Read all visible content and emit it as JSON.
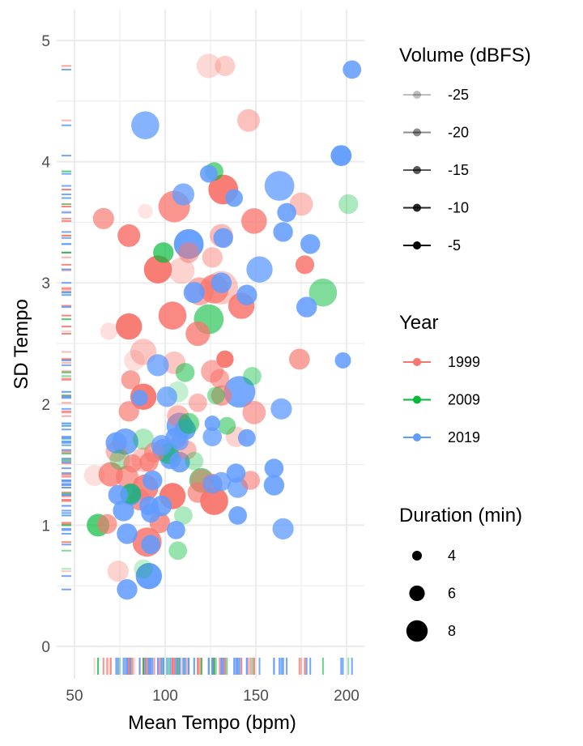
{
  "chart_data": {
    "type": "scatter",
    "xlabel": "Mean Tempo (bpm)",
    "ylabel": "SD Tempo",
    "xlim": [
      45,
      210
    ],
    "ylim": [
      -0.1,
      5.25
    ],
    "x_ticks": [
      50,
      100,
      150,
      200
    ],
    "x_tick_labels": [
      "50",
      "100",
      "150",
      "200"
    ],
    "y_ticks": [
      0,
      1,
      2,
      3,
      4,
      5
    ],
    "y_tick_labels": [
      "0",
      "1",
      "2",
      "3",
      "4",
      "5"
    ],
    "grid": true,
    "rug": true,
    "legend_position": "right",
    "colors": {
      "1999": "#F8766D",
      "2009": "#00BA38",
      "2019": "#619CFF"
    },
    "legends": {
      "volume": {
        "title": "Volume (dBFS)",
        "items": [
          {
            "label": "-25",
            "alpha": 0.25
          },
          {
            "label": "-20",
            "alpha": 0.45
          },
          {
            "label": "-15",
            "alpha": 0.65
          },
          {
            "label": "-10",
            "alpha": 0.85
          },
          {
            "label": "-5",
            "alpha": 1.0
          }
        ]
      },
      "year": {
        "title": "Year",
        "items": [
          {
            "label": "1999",
            "color": "#F8766D"
          },
          {
            "label": "2009",
            "color": "#00BA38"
          },
          {
            "label": "2019",
            "color": "#619CFF"
          }
        ]
      },
      "duration": {
        "title": "Duration (min)",
        "items": [
          {
            "label": "4",
            "duration": 4
          },
          {
            "label": "6",
            "duration": 6
          },
          {
            "label": "8",
            "duration": 8
          }
        ]
      }
    },
    "series": [
      {
        "name": "1999",
        "color": "#F8766D",
        "points": [
          {
            "x": 124,
            "y": 4.79,
            "d": 5.5,
            "v": -23
          },
          {
            "x": 133,
            "y": 4.79,
            "d": 4.3,
            "v": -21
          },
          {
            "x": 146,
            "y": 4.34,
            "d": 5.0,
            "v": -19
          },
          {
            "x": 89,
            "y": 3.59,
            "d": 2.8,
            "v": -25
          },
          {
            "x": 66,
            "y": 3.53,
            "d": 4.6,
            "v": -14
          },
          {
            "x": 105,
            "y": 3.63,
            "d": 7.5,
            "v": -12
          },
          {
            "x": 132,
            "y": 3.77,
            "d": 7.0,
            "v": -8
          },
          {
            "x": 175,
            "y": 3.65,
            "d": 5.2,
            "v": -19
          },
          {
            "x": 149,
            "y": 3.51,
            "d": 5.8,
            "v": -12
          },
          {
            "x": 80,
            "y": 3.39,
            "d": 5.0,
            "v": -10
          },
          {
            "x": 131,
            "y": 3.39,
            "d": 5.2,
            "v": -18
          },
          {
            "x": 113,
            "y": 3.25,
            "d": 4.5,
            "v": -17
          },
          {
            "x": 126,
            "y": 3.21,
            "d": 4.4,
            "v": -19
          },
          {
            "x": 177,
            "y": 3.15,
            "d": 3.9,
            "v": -10
          },
          {
            "x": 96,
            "y": 3.11,
            "d": 6.5,
            "v": -8
          },
          {
            "x": 109,
            "y": 3.1,
            "d": 6.0,
            "v": -22
          },
          {
            "x": 131,
            "y": 2.96,
            "d": 8.0,
            "v": -20
          },
          {
            "x": 127,
            "y": 2.95,
            "d": 6.8,
            "v": -12
          },
          {
            "x": 119,
            "y": 2.93,
            "d": 6.5,
            "v": -16
          },
          {
            "x": 142,
            "y": 2.81,
            "d": 6.0,
            "v": -10
          },
          {
            "x": 104,
            "y": 2.73,
            "d": 6.5,
            "v": -10
          },
          {
            "x": 118,
            "y": 2.58,
            "d": 5.5,
            "v": -12
          },
          {
            "x": 80,
            "y": 2.64,
            "d": 6.0,
            "v": -8
          },
          {
            "x": 69,
            "y": 2.6,
            "d": 3.5,
            "v": -24
          },
          {
            "x": 88,
            "y": 2.43,
            "d": 6.0,
            "v": -20
          },
          {
            "x": 83,
            "y": 2.36,
            "d": 4.5,
            "v": -24
          },
          {
            "x": 105,
            "y": 2.34,
            "d": 5.0,
            "v": -20
          },
          {
            "x": 133,
            "y": 2.37,
            "d": 3.5,
            "v": -8
          },
          {
            "x": 174,
            "y": 2.37,
            "d": 4.5,
            "v": -14
          },
          {
            "x": 126,
            "y": 2.27,
            "d": 5.0,
            "v": -16
          },
          {
            "x": 130,
            "y": 2.21,
            "d": 4.0,
            "v": -16
          },
          {
            "x": 81,
            "y": 2.2,
            "d": 4.0,
            "v": -14
          },
          {
            "x": 88,
            "y": 2.06,
            "d": 6.0,
            "v": -8
          },
          {
            "x": 118,
            "y": 2.01,
            "d": 3.8,
            "v": -18
          },
          {
            "x": 131,
            "y": 2.07,
            "d": 4.4,
            "v": -15
          },
          {
            "x": 149,
            "y": 1.93,
            "d": 5.2,
            "v": -16
          },
          {
            "x": 80,
            "y": 1.94,
            "d": 4.4,
            "v": -14
          },
          {
            "x": 107,
            "y": 1.9,
            "d": 4.8,
            "v": -18
          },
          {
            "x": 139,
            "y": 1.73,
            "d": 4.4,
            "v": -22
          },
          {
            "x": 73,
            "y": 1.61,
            "d": 4.6,
            "v": -18
          },
          {
            "x": 94,
            "y": 1.6,
            "d": 4.4,
            "v": -16
          },
          {
            "x": 88,
            "y": 1.54,
            "d": 5.5,
            "v": -20
          },
          {
            "x": 82,
            "y": 1.51,
            "d": 3.8,
            "v": -14
          },
          {
            "x": 91,
            "y": 1.52,
            "d": 4.0,
            "v": -13
          },
          {
            "x": 61,
            "y": 1.41,
            "d": 4.5,
            "v": -24
          },
          {
            "x": 70,
            "y": 1.42,
            "d": 5.5,
            "v": -12
          },
          {
            "x": 79,
            "y": 1.4,
            "d": 5.0,
            "v": -14
          },
          {
            "x": 120,
            "y": 1.37,
            "d": 5.0,
            "v": -18
          },
          {
            "x": 126,
            "y": 1.34,
            "d": 4.4,
            "v": -14
          },
          {
            "x": 147,
            "y": 1.37,
            "d": 4.0,
            "v": -16
          },
          {
            "x": 89,
            "y": 1.31,
            "d": 6.0,
            "v": -10
          },
          {
            "x": 86,
            "y": 1.21,
            "d": 4.6,
            "v": -12
          },
          {
            "x": 104,
            "y": 1.24,
            "d": 6.0,
            "v": -8
          },
          {
            "x": 127,
            "y": 1.2,
            "d": 6.5,
            "v": -8
          },
          {
            "x": 68,
            "y": 1.01,
            "d": 4.2,
            "v": -14
          },
          {
            "x": 97,
            "y": 1.02,
            "d": 4.4,
            "v": -12
          },
          {
            "x": 90,
            "y": 0.86,
            "d": 6.8,
            "v": -10
          },
          {
            "x": 74,
            "y": 0.62,
            "d": 4.6,
            "v": -22
          },
          {
            "x": 118,
            "y": 1.27,
            "d": 4.4,
            "v": -14
          },
          {
            "x": 112,
            "y": 1.62,
            "d": 4.0,
            "v": -18
          }
        ]
      },
      {
        "name": "2009",
        "color": "#00BA38",
        "points": [
          {
            "x": 201,
            "y": 3.65,
            "d": 4.2,
            "v": -22
          },
          {
            "x": 187,
            "y": 2.92,
            "d": 6.5,
            "v": -18
          },
          {
            "x": 124,
            "y": 2.7,
            "d": 7.0,
            "v": -16
          },
          {
            "x": 148,
            "y": 2.23,
            "d": 3.8,
            "v": -20
          },
          {
            "x": 111,
            "y": 2.26,
            "d": 4.0,
            "v": -18
          },
          {
            "x": 107,
            "y": 2.1,
            "d": 4.5,
            "v": -24
          },
          {
            "x": 128,
            "y": 2.07,
            "d": 3.6,
            "v": -20
          },
          {
            "x": 113,
            "y": 1.84,
            "d": 4.5,
            "v": -18
          },
          {
            "x": 88,
            "y": 1.71,
            "d": 4.6,
            "v": -22
          },
          {
            "x": 116,
            "y": 1.53,
            "d": 3.8,
            "v": -22
          },
          {
            "x": 102,
            "y": 1.59,
            "d": 4.5,
            "v": -18
          },
          {
            "x": 75,
            "y": 1.54,
            "d": 4.4,
            "v": -22
          },
          {
            "x": 120,
            "y": 1.37,
            "d": 5.5,
            "v": -16
          },
          {
            "x": 63,
            "y": 1.0,
            "d": 5.0,
            "v": -14
          },
          {
            "x": 81,
            "y": 1.26,
            "d": 4.4,
            "v": -16
          },
          {
            "x": 88,
            "y": 0.64,
            "d": 4.0,
            "v": -24
          },
          {
            "x": 107,
            "y": 0.79,
            "d": 3.8,
            "v": -20
          },
          {
            "x": 110,
            "y": 1.08,
            "d": 3.8,
            "v": -22
          },
          {
            "x": 99,
            "y": 3.25,
            "d": 4.4,
            "v": -14
          },
          {
            "x": 127,
            "y": 3.92,
            "d": 3.8,
            "v": -16
          },
          {
            "x": 134,
            "y": 1.82,
            "d": 3.6,
            "v": -18
          }
        ]
      },
      {
        "name": "2019",
        "color": "#619CFF",
        "points": [
          {
            "x": 203,
            "y": 4.76,
            "d": 3.8,
            "v": -10
          },
          {
            "x": 89,
            "y": 4.3,
            "d": 6.5,
            "v": -12
          },
          {
            "x": 197,
            "y": 4.05,
            "d": 4.5,
            "v": -8
          },
          {
            "x": 163,
            "y": 3.8,
            "d": 7.0,
            "v": -12
          },
          {
            "x": 110,
            "y": 3.73,
            "d": 4.8,
            "v": -12
          },
          {
            "x": 124,
            "y": 3.9,
            "d": 3.6,
            "v": -10
          },
          {
            "x": 138,
            "y": 3.7,
            "d": 3.6,
            "v": -10
          },
          {
            "x": 167,
            "y": 3.58,
            "d": 4.0,
            "v": -10
          },
          {
            "x": 165,
            "y": 3.42,
            "d": 4.2,
            "v": -10
          },
          {
            "x": 132,
            "y": 3.37,
            "d": 4.2,
            "v": -10
          },
          {
            "x": 180,
            "y": 3.32,
            "d": 4.2,
            "v": -10
          },
          {
            "x": 113,
            "y": 3.32,
            "d": 7.0,
            "v": -8
          },
          {
            "x": 152,
            "y": 3.11,
            "d": 6.0,
            "v": -12
          },
          {
            "x": 131,
            "y": 3.0,
            "d": 4.4,
            "v": -10
          },
          {
            "x": 116,
            "y": 2.92,
            "d": 4.6,
            "v": -10
          },
          {
            "x": 145,
            "y": 2.9,
            "d": 4.4,
            "v": -10
          },
          {
            "x": 178,
            "y": 2.8,
            "d": 4.4,
            "v": -10
          },
          {
            "x": 198,
            "y": 2.36,
            "d": 3.2,
            "v": -10
          },
          {
            "x": 96,
            "y": 2.32,
            "d": 4.8,
            "v": -12
          },
          {
            "x": 86,
            "y": 2.05,
            "d": 3.2,
            "v": -10
          },
          {
            "x": 101,
            "y": 2.06,
            "d": 4.4,
            "v": -12
          },
          {
            "x": 141,
            "y": 2.1,
            "d": 7.5,
            "v": -10
          },
          {
            "x": 164,
            "y": 1.96,
            "d": 4.6,
            "v": -12
          },
          {
            "x": 108,
            "y": 1.82,
            "d": 6.0,
            "v": -10
          },
          {
            "x": 111,
            "y": 1.79,
            "d": 4.6,
            "v": -10
          },
          {
            "x": 106,
            "y": 1.72,
            "d": 4.6,
            "v": -10
          },
          {
            "x": 78,
            "y": 1.69,
            "d": 6.0,
            "v": -10
          },
          {
            "x": 73,
            "y": 1.68,
            "d": 4.6,
            "v": -10
          },
          {
            "x": 99,
            "y": 1.62,
            "d": 4.8,
            "v": -10
          },
          {
            "x": 98,
            "y": 1.66,
            "d": 4.4,
            "v": -12
          },
          {
            "x": 103,
            "y": 1.55,
            "d": 4.6,
            "v": -10
          },
          {
            "x": 108,
            "y": 1.52,
            "d": 4.4,
            "v": -10
          },
          {
            "x": 126,
            "y": 1.73,
            "d": 4.0,
            "v": -12
          },
          {
            "x": 145,
            "y": 1.72,
            "d": 3.6,
            "v": -10
          },
          {
            "x": 108,
            "y": 1.69,
            "d": 3.6,
            "v": -12
          },
          {
            "x": 126,
            "y": 1.84,
            "d": 3.0,
            "v": -10
          },
          {
            "x": 160,
            "y": 1.47,
            "d": 4.0,
            "v": -10
          },
          {
            "x": 139,
            "y": 1.43,
            "d": 4.0,
            "v": -10
          },
          {
            "x": 93,
            "y": 1.37,
            "d": 4.2,
            "v": -10
          },
          {
            "x": 126,
            "y": 1.34,
            "d": 4.0,
            "v": -12
          },
          {
            "x": 140,
            "y": 1.31,
            "d": 4.4,
            "v": -12
          },
          {
            "x": 160,
            "y": 1.33,
            "d": 4.4,
            "v": -10
          },
          {
            "x": 131,
            "y": 1.36,
            "d": 4.0,
            "v": -12
          },
          {
            "x": 74,
            "y": 1.25,
            "d": 4.2,
            "v": -10
          },
          {
            "x": 81,
            "y": 1.25,
            "d": 4.6,
            "v": -10
          },
          {
            "x": 91,
            "y": 1.16,
            "d": 4.0,
            "v": -10
          },
          {
            "x": 92,
            "y": 1.1,
            "d": 4.0,
            "v": -10
          },
          {
            "x": 77,
            "y": 1.12,
            "d": 4.6,
            "v": -10
          },
          {
            "x": 98,
            "y": 1.16,
            "d": 4.4,
            "v": -10
          },
          {
            "x": 140,
            "y": 1.08,
            "d": 3.8,
            "v": -10
          },
          {
            "x": 106,
            "y": 0.96,
            "d": 3.8,
            "v": -10
          },
          {
            "x": 165,
            "y": 0.97,
            "d": 4.6,
            "v": -12
          },
          {
            "x": 79,
            "y": 0.93,
            "d": 4.4,
            "v": -10
          },
          {
            "x": 92,
            "y": 0.84,
            "d": 4.0,
            "v": -10
          },
          {
            "x": 91,
            "y": 0.58,
            "d": 6.0,
            "v": -8
          },
          {
            "x": 79,
            "y": 0.47,
            "d": 4.4,
            "v": -10
          }
        ]
      }
    ]
  }
}
